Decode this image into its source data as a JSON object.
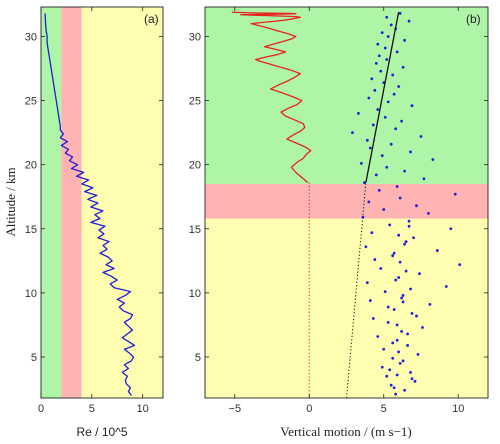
{
  "chart_data": [
    {
      "type": "line",
      "panel_label": "(a)",
      "xlabel": "Re / 10^5",
      "ylabel": "Altitude / km",
      "xlim": [
        0,
        12
      ],
      "ylim": [
        1.8,
        32.3
      ],
      "xticks": [
        0,
        5,
        10
      ],
      "yticks": [
        5,
        10,
        15,
        20,
        25,
        30
      ],
      "grid": false,
      "bands_vertical": [
        {
          "from": 0,
          "to": 2,
          "color": "#aef5a8"
        },
        {
          "from": 2,
          "to": 4,
          "color": "#ffb3b3"
        },
        {
          "from": 4,
          "to": 12,
          "color": "#fffdb0"
        }
      ],
      "series": [
        {
          "color": "#1f1fd8",
          "x": [
            8.9,
            8.6,
            8.8,
            8.4,
            8.3,
            8.5,
            8.0,
            8.6,
            8.2,
            8.9,
            9.1,
            8.7,
            8.2,
            9.2,
            8.6,
            8.0,
            8.5,
            9.0,
            8.6,
            8.2,
            8.8,
            9.0,
            8.1,
            7.7,
            8.2,
            7.5,
            8.3,
            8.8,
            7.2,
            6.8,
            7.5,
            6.9,
            6.1,
            7.2,
            6.4,
            7.0,
            6.6,
            5.8,
            6.5,
            6.1,
            6.7,
            5.6,
            6.2,
            5.7,
            6.3,
            4.9,
            5.8,
            5.3,
            6.1,
            4.9,
            5.6,
            4.6,
            5.5,
            4.3,
            5.1,
            4.0,
            4.7,
            3.5,
            4.2,
            3.0,
            3.6,
            2.8,
            3.1,
            2.4,
            2.7,
            2.0,
            2.6,
            1.9,
            2.2,
            1.9,
            1.9,
            1.8,
            1.7,
            1.6,
            1.5,
            1.4,
            1.3,
            1.2,
            1.1,
            1.0,
            0.9,
            0.8,
            0.7,
            0.6,
            0.6,
            0.5,
            0.45,
            0.4
          ],
          "y": [
            2.0,
            2.3,
            2.6,
            2.9,
            3.2,
            3.5,
            3.8,
            4.1,
            4.4,
            4.7,
            5.0,
            5.3,
            5.6,
            5.9,
            6.2,
            6.5,
            6.8,
            7.1,
            7.4,
            7.7,
            8.0,
            8.3,
            8.6,
            8.9,
            9.2,
            9.5,
            9.8,
            10.1,
            10.4,
            10.7,
            11.0,
            11.3,
            11.6,
            11.9,
            12.2,
            12.5,
            12.8,
            13.1,
            13.4,
            13.7,
            14.0,
            14.3,
            14.6,
            14.9,
            15.2,
            15.5,
            15.8,
            16.1,
            16.4,
            16.7,
            17.0,
            17.3,
            17.6,
            17.9,
            18.2,
            18.5,
            18.8,
            19.1,
            19.4,
            19.7,
            20.0,
            20.3,
            20.6,
            20.9,
            21.2,
            21.5,
            21.8,
            22.1,
            22.4,
            22.7,
            23.0,
            23.5,
            24.0,
            24.5,
            25.0,
            25.5,
            26.0,
            26.5,
            27.0,
            27.5,
            28.0,
            28.5,
            29.0,
            29.5,
            30.0,
            30.5,
            31.0,
            31.8
          ]
        }
      ]
    },
    {
      "type": "scatter",
      "panel_label": "(b)",
      "xlabel": "Vertical motion / (m s−1)",
      "ylabel": "",
      "xlim": [
        -7,
        12
      ],
      "ylim": [
        1.8,
        32.3
      ],
      "xticks": [
        -5,
        0,
        5,
        10
      ],
      "yticks": [
        5,
        10,
        15,
        20,
        25,
        30
      ],
      "grid": false,
      "bands_horizontal": [
        {
          "from": 1.8,
          "to": 15.8,
          "color": "#fffdb0"
        },
        {
          "from": 15.8,
          "to": 18.5,
          "color": "#ffb3b3"
        },
        {
          "from": 18.5,
          "to": 32.3,
          "color": "#aef5a8"
        }
      ],
      "series": [
        {
          "color": "#1f1fd8",
          "style": "dots",
          "x": [
            5.8,
            6.4,
            5.5,
            7.1,
            5.2,
            6.8,
            4.9,
            6.1,
            5.6,
            7.3,
            5.0,
            6.6,
            5.9,
            4.6,
            6.2,
            7.6,
            5.3,
            4.3,
            6.9,
            5.7,
            8.1,
            4.1,
            6.3,
            5.1,
            9.2,
            3.9,
            6.0,
            7.4,
            4.8,
            10.1,
            4.4,
            5.6,
            8.6,
            3.8,
            6.5,
            7.0,
            4.2,
            9.5,
            5.4,
            6.7,
            3.6,
            8.0,
            5.0,
            7.2,
            4.0,
            6.1,
            9.8,
            4.7,
            5.9,
            3.7,
            7.7,
            4.5,
            6.4,
            5.2,
            3.5,
            8.3,
            4.9,
            6.8,
            4.1,
            5.5,
            3.9,
            7.5,
            2.9,
            5.8,
            4.3,
            6.2,
            5.1,
            3.3,
            4.6,
            6.9,
            5.3,
            4.0,
            5.7,
            4.4,
            6.0,
            5.0,
            4.2,
            5.6,
            4.8,
            6.3,
            4.5,
            5.2,
            4.7,
            5.9,
            5.1,
            4.6,
            6.4,
            5.3,
            4.9,
            5.8,
            5.5,
            6.7,
            5.2,
            6.1,
            5.7,
            6.9,
            5.4,
            6.3,
            6.0,
            5.6,
            6.6,
            5.9,
            7.2,
            5.3,
            6.2,
            6.8,
            5.8,
            6.5,
            6.1,
            5.7,
            6.4,
            6.0,
            6.7,
            5.9,
            6.3
          ],
          "y": [
            2.1,
            2.4,
            2.8,
            3.1,
            3.5,
            3.8,
            4.2,
            4.5,
            4.9,
            5.2,
            5.6,
            5.9,
            6.3,
            6.6,
            7.0,
            7.3,
            7.7,
            8.0,
            8.4,
            8.7,
            9.1,
            9.4,
            9.8,
            10.1,
            10.5,
            10.8,
            11.2,
            11.5,
            11.9,
            12.2,
            12.6,
            12.9,
            13.3,
            13.6,
            14.0,
            14.3,
            14.7,
            15.0,
            15.3,
            15.6,
            15.9,
            16.2,
            16.5,
            16.8,
            17.1,
            17.4,
            17.7,
            18.0,
            18.3,
            18.6,
            18.9,
            19.2,
            19.5,
            19.8,
            20.1,
            20.4,
            20.7,
            21.0,
            21.3,
            21.6,
            21.9,
            22.2,
            22.5,
            22.8,
            23.1,
            23.4,
            23.7,
            24.0,
            24.3,
            24.6,
            24.9,
            25.2,
            25.5,
            25.8,
            26.1,
            26.4,
            26.7,
            27.0,
            27.3,
            27.6,
            27.9,
            28.2,
            28.5,
            28.8,
            29.1,
            29.4,
            29.7,
            30.0,
            30.3,
            30.6,
            30.9,
            31.2,
            31.5,
            31.8,
            2.6,
            3.3,
            4.0,
            4.7,
            5.4,
            6.1,
            6.8,
            7.5,
            8.2,
            8.9,
            9.6,
            10.3,
            11.0,
            11.7,
            12.4,
            13.1,
            13.8,
            14.5,
            15.2,
            3.6,
            9.3
          ],
          "x_extra_note": ""
        },
        {
          "color": "#e8231b",
          "style": "line",
          "x": [
            -0.1,
            -0.5,
            -0.9,
            -1.2,
            -0.8,
            -0.4,
            -0.2,
            0.1,
            -0.3,
            -0.9,
            -1.5,
            -1.1,
            -0.6,
            -0.3,
            -0.4,
            -1.0,
            -1.6,
            -1.9,
            -1.4,
            -0.8,
            -0.5,
            -1.1,
            -1.8,
            -2.6,
            -2.1,
            -1.5,
            -1.0,
            -0.6,
            -1.3,
            -2.2,
            -3.1,
            -3.6,
            -2.9,
            -2.1,
            -1.6,
            -2.3,
            -3.0,
            -2.4,
            -1.8,
            -1.2,
            -0.9,
            -1.4,
            -2.0,
            -2.6,
            -3.2,
            -3.9,
            -3.1,
            -2.2,
            -1.5,
            -1.0,
            -0.6,
            -0.9,
            -2.0,
            -3.4,
            -4.6,
            -3.5,
            -2.4,
            -1.5,
            -0.9,
            -1.4,
            -2.8,
            -3.7,
            -4.4,
            -5.2
          ],
          "y": [
            18.6,
            19.0,
            19.4,
            19.8,
            20.2,
            20.5,
            20.8,
            21.1,
            21.4,
            21.7,
            22.0,
            22.3,
            22.6,
            22.9,
            23.2,
            23.5,
            23.8,
            24.1,
            24.4,
            24.7,
            25.0,
            25.3,
            25.6,
            25.9,
            26.2,
            26.5,
            26.8,
            27.1,
            27.4,
            27.7,
            28.0,
            28.2,
            28.4,
            28.6,
            28.8,
            29.0,
            29.2,
            29.4,
            29.6,
            29.8,
            30.0,
            30.2,
            30.4,
            30.6,
            30.8,
            31.0,
            31.1,
            31.2,
            31.3,
            31.4,
            31.5,
            31.55,
            31.6,
            31.65,
            31.7,
            31.72,
            31.74,
            31.76,
            31.78,
            31.8,
            31.82,
            31.84,
            31.86,
            31.9
          ]
        },
        {
          "color": "#e8231b",
          "style": "dotted",
          "x": [
            0,
            0
          ],
          "y": [
            1.8,
            18.6
          ]
        },
        {
          "color": "#111111",
          "style": "line",
          "x": [
            3.8,
            6.0
          ],
          "y": [
            18.6,
            31.9
          ]
        },
        {
          "color": "#111111",
          "style": "dotted",
          "x": [
            2.5,
            3.8
          ],
          "y": [
            1.8,
            18.6
          ]
        }
      ]
    }
  ]
}
